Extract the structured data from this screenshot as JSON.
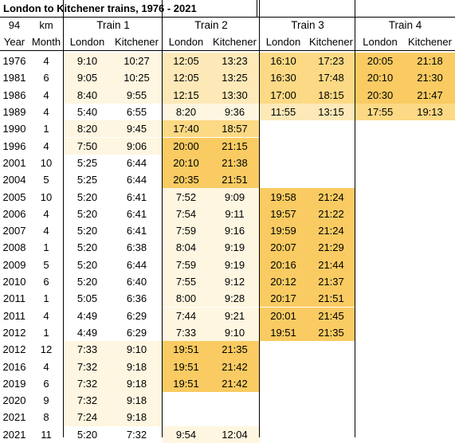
{
  "title": "London to Kitchener trains, 1976 - 2021",
  "header": {
    "top_left": [
      "94",
      "km"
    ],
    "trains": [
      "Train 1",
      "Train 2",
      "Train 3",
      "Train 4"
    ],
    "col_labels": [
      "Year",
      "Month",
      "London",
      "Kitchener",
      "London",
      "Kitchener",
      "London",
      "Kitchener",
      "London",
      "Kitchener"
    ]
  },
  "colors": {
    "pale": "#fef6e0",
    "light": "#fde9b8",
    "medium": "#fcd984",
    "strong": "#f9cb62",
    "white": "#ffffff"
  },
  "rows": [
    {
      "year": "1976",
      "month": "4",
      "trains": [
        [
          "9:10",
          "10:27"
        ],
        [
          "12:05",
          "13:23"
        ],
        [
          "16:10",
          "17:23"
        ],
        [
          "20:05",
          "21:18"
        ]
      ],
      "shade": [
        [
          "pale",
          "pale"
        ],
        [
          "light",
          "light"
        ],
        [
          "medium",
          "medium"
        ],
        [
          "strong",
          "strong"
        ]
      ]
    },
    {
      "year": "1981",
      "month": "6",
      "trains": [
        [
          "9:05",
          "10:25"
        ],
        [
          "12:05",
          "13:25"
        ],
        [
          "16:30",
          "17:48"
        ],
        [
          "20:10",
          "21:30"
        ]
      ],
      "shade": [
        [
          "pale",
          "pale"
        ],
        [
          "light",
          "light"
        ],
        [
          "medium",
          "medium"
        ],
        [
          "strong",
          "strong"
        ]
      ]
    },
    {
      "year": "1986",
      "month": "4",
      "trains": [
        [
          "8:40",
          "9:55"
        ],
        [
          "12:15",
          "13:30"
        ],
        [
          "17:00",
          "18:15"
        ],
        [
          "20:30",
          "21:47"
        ]
      ],
      "shade": [
        [
          "pale",
          "pale"
        ],
        [
          "light",
          "light"
        ],
        [
          "medium",
          "medium"
        ],
        [
          "strong",
          "strong"
        ]
      ]
    },
    {
      "year": "1989",
      "month": "4",
      "trains": [
        [
          "5:40",
          "6:55"
        ],
        [
          "8:20",
          "9:36"
        ],
        [
          "11:55",
          "13:15"
        ],
        [
          "17:55",
          "19:13"
        ]
      ],
      "shade": [
        [
          "white",
          "white"
        ],
        [
          "pale",
          "pale"
        ],
        [
          "light",
          "light"
        ],
        [
          "medium",
          "medium"
        ]
      ]
    },
    {
      "year": "1990",
      "month": "1",
      "trains": [
        [
          "8:20",
          "9:45"
        ],
        [
          "17:40",
          "18:57"
        ],
        [
          "",
          ""
        ],
        [
          "",
          ""
        ]
      ],
      "shade": [
        [
          "pale",
          "pale"
        ],
        [
          "medium",
          "medium"
        ],
        [
          "white",
          "white"
        ],
        [
          "white",
          "white"
        ]
      ]
    },
    {
      "year": "1996",
      "month": "4",
      "trains": [
        [
          "7:50",
          "9:06"
        ],
        [
          "20:00",
          "21:15"
        ],
        [
          "",
          ""
        ],
        [
          "",
          ""
        ]
      ],
      "shade": [
        [
          "pale",
          "pale"
        ],
        [
          "strong",
          "strong"
        ],
        [
          "white",
          "white"
        ],
        [
          "white",
          "white"
        ]
      ]
    },
    {
      "year": "2001",
      "month": "10",
      "trains": [
        [
          "5:25",
          "6:44"
        ],
        [
          "20:10",
          "21:38"
        ],
        [
          "",
          ""
        ],
        [
          "",
          ""
        ]
      ],
      "shade": [
        [
          "white",
          "white"
        ],
        [
          "strong",
          "strong"
        ],
        [
          "white",
          "white"
        ],
        [
          "white",
          "white"
        ]
      ]
    },
    {
      "year": "2004",
      "month": "5",
      "trains": [
        [
          "5:25",
          "6:44"
        ],
        [
          "20:35",
          "21:51"
        ],
        [
          "",
          ""
        ],
        [
          "",
          ""
        ]
      ],
      "shade": [
        [
          "white",
          "white"
        ],
        [
          "strong",
          "strong"
        ],
        [
          "white",
          "white"
        ],
        [
          "white",
          "white"
        ]
      ]
    },
    {
      "year": "2005",
      "month": "10",
      "trains": [
        [
          "5:20",
          "6:41"
        ],
        [
          "7:52",
          "9:09"
        ],
        [
          "19:58",
          "21:24"
        ],
        [
          "",
          ""
        ]
      ],
      "shade": [
        [
          "white",
          "white"
        ],
        [
          "pale",
          "pale"
        ],
        [
          "strong",
          "strong"
        ],
        [
          "white",
          "white"
        ]
      ]
    },
    {
      "year": "2006",
      "month": "4",
      "trains": [
        [
          "5:20",
          "6:41"
        ],
        [
          "7:54",
          "9:11"
        ],
        [
          "19:57",
          "21:22"
        ],
        [
          "",
          ""
        ]
      ],
      "shade": [
        [
          "white",
          "white"
        ],
        [
          "pale",
          "pale"
        ],
        [
          "strong",
          "strong"
        ],
        [
          "white",
          "white"
        ]
      ]
    },
    {
      "year": "2007",
      "month": "4",
      "trains": [
        [
          "5:20",
          "6:41"
        ],
        [
          "7:59",
          "9:16"
        ],
        [
          "19:59",
          "21:24"
        ],
        [
          "",
          ""
        ]
      ],
      "shade": [
        [
          "white",
          "white"
        ],
        [
          "pale",
          "pale"
        ],
        [
          "strong",
          "strong"
        ],
        [
          "white",
          "white"
        ]
      ]
    },
    {
      "year": "2008",
      "month": "1",
      "trains": [
        [
          "5:20",
          "6:38"
        ],
        [
          "8:04",
          "9:19"
        ],
        [
          "20:07",
          "21:29"
        ],
        [
          "",
          ""
        ]
      ],
      "shade": [
        [
          "white",
          "white"
        ],
        [
          "pale",
          "pale"
        ],
        [
          "strong",
          "strong"
        ],
        [
          "white",
          "white"
        ]
      ]
    },
    {
      "year": "2009",
      "month": "5",
      "trains": [
        [
          "5:20",
          "6:44"
        ],
        [
          "7:59",
          "9:19"
        ],
        [
          "20:16",
          "21:44"
        ],
        [
          "",
          ""
        ]
      ],
      "shade": [
        [
          "white",
          "white"
        ],
        [
          "pale",
          "pale"
        ],
        [
          "strong",
          "strong"
        ],
        [
          "white",
          "white"
        ]
      ]
    },
    {
      "year": "2010",
      "month": "6",
      "trains": [
        [
          "5:20",
          "6:40"
        ],
        [
          "7:55",
          "9:12"
        ],
        [
          "20:12",
          "21:37"
        ],
        [
          "",
          ""
        ]
      ],
      "shade": [
        [
          "white",
          "white"
        ],
        [
          "pale",
          "pale"
        ],
        [
          "strong",
          "strong"
        ],
        [
          "white",
          "white"
        ]
      ]
    },
    {
      "year": "2011",
      "month": "1",
      "trains": [
        [
          "5:05",
          "6:36"
        ],
        [
          "8:00",
          "9:28"
        ],
        [
          "20:17",
          "21:51"
        ],
        [
          "",
          ""
        ]
      ],
      "shade": [
        [
          "white",
          "white"
        ],
        [
          "pale",
          "pale"
        ],
        [
          "strong",
          "strong"
        ],
        [
          "white",
          "white"
        ]
      ]
    },
    {
      "year": "2011",
      "month": "4",
      "trains": [
        [
          "4:49",
          "6:29"
        ],
        [
          "7:44",
          "9:21"
        ],
        [
          "20:01",
          "21:45"
        ],
        [
          "",
          ""
        ]
      ],
      "shade": [
        [
          "white",
          "white"
        ],
        [
          "pale",
          "pale"
        ],
        [
          "strong",
          "strong"
        ],
        [
          "white",
          "white"
        ]
      ]
    },
    {
      "year": "2012",
      "month": "1",
      "trains": [
        [
          "4:49",
          "6:29"
        ],
        [
          "7:33",
          "9:10"
        ],
        [
          "19:51",
          "21:35"
        ],
        [
          "",
          ""
        ]
      ],
      "shade": [
        [
          "white",
          "white"
        ],
        [
          "pale",
          "pale"
        ],
        [
          "strong",
          "strong"
        ],
        [
          "white",
          "white"
        ]
      ]
    },
    {
      "year": "2012",
      "month": "12",
      "trains": [
        [
          "7:33",
          "9:10"
        ],
        [
          "19:51",
          "21:35"
        ],
        [
          "",
          ""
        ],
        [
          "",
          ""
        ]
      ],
      "shade": [
        [
          "pale",
          "pale"
        ],
        [
          "strong",
          "strong"
        ],
        [
          "white",
          "white"
        ],
        [
          "white",
          "white"
        ]
      ]
    },
    {
      "year": "2016",
      "month": "4",
      "trains": [
        [
          "7:32",
          "9:18"
        ],
        [
          "19:51",
          "21:42"
        ],
        [
          "",
          ""
        ],
        [
          "",
          ""
        ]
      ],
      "shade": [
        [
          "pale",
          "pale"
        ],
        [
          "strong",
          "strong"
        ],
        [
          "white",
          "white"
        ],
        [
          "white",
          "white"
        ]
      ]
    },
    {
      "year": "2019",
      "month": "6",
      "trains": [
        [
          "7:32",
          "9:18"
        ],
        [
          "19:51",
          "21:42"
        ],
        [
          "",
          ""
        ],
        [
          "",
          ""
        ]
      ],
      "shade": [
        [
          "pale",
          "pale"
        ],
        [
          "strong",
          "strong"
        ],
        [
          "white",
          "white"
        ],
        [
          "white",
          "white"
        ]
      ]
    },
    {
      "year": "2020",
      "month": "9",
      "trains": [
        [
          "7:32",
          "9:18"
        ],
        [
          "",
          ""
        ],
        [
          "",
          ""
        ],
        [
          "",
          ""
        ]
      ],
      "shade": [
        [
          "pale",
          "pale"
        ],
        [
          "white",
          "white"
        ],
        [
          "white",
          "white"
        ],
        [
          "white",
          "white"
        ]
      ]
    },
    {
      "year": "2021",
      "month": "8",
      "trains": [
        [
          "7:24",
          "9:18"
        ],
        [
          "",
          ""
        ],
        [
          "",
          ""
        ],
        [
          "",
          ""
        ]
      ],
      "shade": [
        [
          "pale",
          "pale"
        ],
        [
          "white",
          "white"
        ],
        [
          "white",
          "white"
        ],
        [
          "white",
          "white"
        ]
      ]
    },
    {
      "year": "2021",
      "month": "11",
      "trains": [
        [
          "5:20",
          "7:32"
        ],
        [
          "9:54",
          "12:04"
        ],
        [
          "",
          ""
        ],
        [
          "",
          ""
        ]
      ],
      "shade": [
        [
          "white",
          "white"
        ],
        [
          "pale",
          "pale"
        ],
        [
          "white",
          "white"
        ],
        [
          "white",
          "white"
        ]
      ]
    }
  ]
}
